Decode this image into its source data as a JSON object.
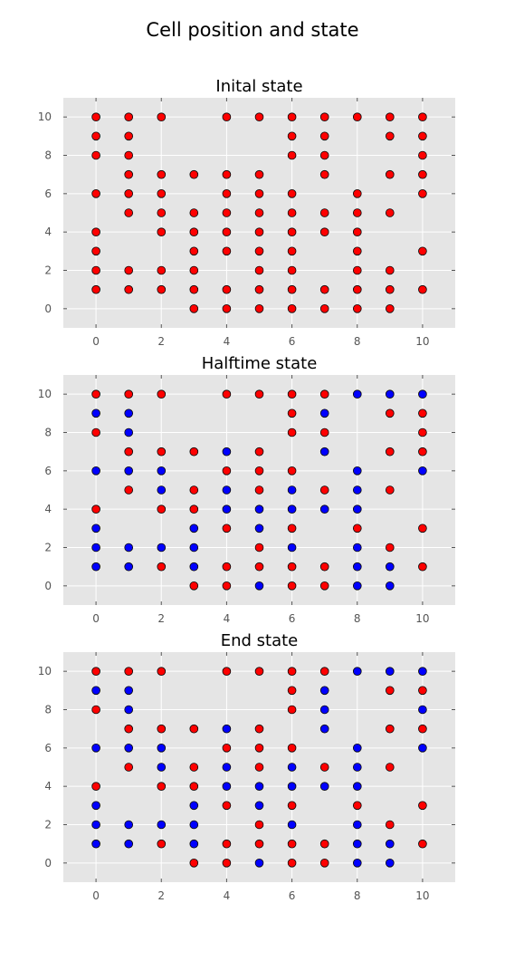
{
  "figure": {
    "title": "Cell position and state"
  },
  "colors": {
    "state_0": "#ff0000",
    "state_1": "#0000ff",
    "background": "#e5e5e5",
    "grid": "#ffffff"
  },
  "chart_data": [
    {
      "type": "scatter",
      "title": "Inital state",
      "xlim": [
        -1,
        11
      ],
      "ylim": [
        -1,
        11
      ],
      "xticks": [
        "0",
        "2",
        "4",
        "6",
        "8",
        "10"
      ],
      "yticks": [
        "0",
        "2",
        "4",
        "6",
        "8",
        "10"
      ],
      "grid": true,
      "points": [
        [
          0,
          10,
          0
        ],
        [
          1,
          10,
          0
        ],
        [
          2,
          10,
          0
        ],
        [
          4,
          10,
          0
        ],
        [
          5,
          10,
          0
        ],
        [
          6,
          10,
          0
        ],
        [
          7,
          10,
          0
        ],
        [
          8,
          10,
          0
        ],
        [
          9,
          10,
          0
        ],
        [
          10,
          10,
          0
        ],
        [
          0,
          9,
          0
        ],
        [
          1,
          9,
          0
        ],
        [
          6,
          9,
          0
        ],
        [
          7,
          9,
          0
        ],
        [
          9,
          9,
          0
        ],
        [
          10,
          9,
          0
        ],
        [
          0,
          8,
          0
        ],
        [
          1,
          8,
          0
        ],
        [
          6,
          8,
          0
        ],
        [
          7,
          8,
          0
        ],
        [
          10,
          8,
          0
        ],
        [
          1,
          7,
          0
        ],
        [
          2,
          7,
          0
        ],
        [
          3,
          7,
          0
        ],
        [
          4,
          7,
          0
        ],
        [
          5,
          7,
          0
        ],
        [
          7,
          7,
          0
        ],
        [
          9,
          7,
          0
        ],
        [
          10,
          7,
          0
        ],
        [
          0,
          6,
          0
        ],
        [
          1,
          6,
          0
        ],
        [
          2,
          6,
          0
        ],
        [
          4,
          6,
          0
        ],
        [
          5,
          6,
          0
        ],
        [
          6,
          6,
          0
        ],
        [
          8,
          6,
          0
        ],
        [
          10,
          6,
          0
        ],
        [
          1,
          5,
          0
        ],
        [
          2,
          5,
          0
        ],
        [
          3,
          5,
          0
        ],
        [
          4,
          5,
          0
        ],
        [
          5,
          5,
          0
        ],
        [
          6,
          5,
          0
        ],
        [
          7,
          5,
          0
        ],
        [
          8,
          5,
          0
        ],
        [
          9,
          5,
          0
        ],
        [
          0,
          4,
          0
        ],
        [
          2,
          4,
          0
        ],
        [
          3,
          4,
          0
        ],
        [
          4,
          4,
          0
        ],
        [
          5,
          4,
          0
        ],
        [
          6,
          4,
          0
        ],
        [
          7,
          4,
          0
        ],
        [
          8,
          4,
          0
        ],
        [
          0,
          3,
          0
        ],
        [
          3,
          3,
          0
        ],
        [
          4,
          3,
          0
        ],
        [
          5,
          3,
          0
        ],
        [
          6,
          3,
          0
        ],
        [
          8,
          3,
          0
        ],
        [
          10,
          3,
          0
        ],
        [
          0,
          2,
          0
        ],
        [
          1,
          2,
          0
        ],
        [
          2,
          2,
          0
        ],
        [
          3,
          2,
          0
        ],
        [
          5,
          2,
          0
        ],
        [
          6,
          2,
          0
        ],
        [
          8,
          2,
          0
        ],
        [
          9,
          2,
          0
        ],
        [
          0,
          1,
          0
        ],
        [
          1,
          1,
          0
        ],
        [
          2,
          1,
          0
        ],
        [
          3,
          1,
          0
        ],
        [
          4,
          1,
          0
        ],
        [
          5,
          1,
          0
        ],
        [
          6,
          1,
          0
        ],
        [
          7,
          1,
          0
        ],
        [
          8,
          1,
          0
        ],
        [
          9,
          1,
          0
        ],
        [
          10,
          1,
          0
        ],
        [
          3,
          0,
          0
        ],
        [
          4,
          0,
          0
        ],
        [
          5,
          0,
          0
        ],
        [
          6,
          0,
          0
        ],
        [
          7,
          0,
          0
        ],
        [
          8,
          0,
          0
        ],
        [
          9,
          0,
          0
        ]
      ]
    },
    {
      "type": "scatter",
      "title": "Halftime state",
      "xlim": [
        -1,
        11
      ],
      "ylim": [
        -1,
        11
      ],
      "xticks": [
        "0",
        "2",
        "4",
        "6",
        "8",
        "10"
      ],
      "yticks": [
        "0",
        "2",
        "4",
        "6",
        "8",
        "10"
      ],
      "grid": true,
      "points": [
        [
          0,
          10,
          0
        ],
        [
          1,
          10,
          0
        ],
        [
          2,
          10,
          0
        ],
        [
          4,
          10,
          0
        ],
        [
          5,
          10,
          0
        ],
        [
          6,
          10,
          0
        ],
        [
          7,
          10,
          0
        ],
        [
          8,
          10,
          1
        ],
        [
          9,
          10,
          1
        ],
        [
          10,
          10,
          1
        ],
        [
          0,
          9,
          1
        ],
        [
          1,
          9,
          1
        ],
        [
          6,
          9,
          0
        ],
        [
          7,
          9,
          1
        ],
        [
          9,
          9,
          0
        ],
        [
          10,
          9,
          0
        ],
        [
          0,
          8,
          0
        ],
        [
          1,
          8,
          1
        ],
        [
          6,
          8,
          0
        ],
        [
          7,
          8,
          0
        ],
        [
          10,
          8,
          0
        ],
        [
          1,
          7,
          0
        ],
        [
          2,
          7,
          0
        ],
        [
          3,
          7,
          0
        ],
        [
          4,
          7,
          1
        ],
        [
          5,
          7,
          0
        ],
        [
          7,
          7,
          1
        ],
        [
          9,
          7,
          0
        ],
        [
          10,
          7,
          0
        ],
        [
          0,
          6,
          1
        ],
        [
          1,
          6,
          1
        ],
        [
          2,
          6,
          1
        ],
        [
          4,
          6,
          0
        ],
        [
          5,
          6,
          0
        ],
        [
          6,
          6,
          0
        ],
        [
          8,
          6,
          1
        ],
        [
          10,
          6,
          1
        ],
        [
          1,
          5,
          0
        ],
        [
          2,
          5,
          1
        ],
        [
          3,
          5,
          0
        ],
        [
          4,
          5,
          1
        ],
        [
          5,
          5,
          0
        ],
        [
          6,
          5,
          1
        ],
        [
          7,
          5,
          0
        ],
        [
          8,
          5,
          1
        ],
        [
          9,
          5,
          0
        ],
        [
          0,
          4,
          0
        ],
        [
          2,
          4,
          0
        ],
        [
          3,
          4,
          0
        ],
        [
          4,
          4,
          1
        ],
        [
          5,
          4,
          1
        ],
        [
          6,
          4,
          1
        ],
        [
          7,
          4,
          1
        ],
        [
          8,
          4,
          1
        ],
        [
          0,
          3,
          1
        ],
        [
          3,
          3,
          1
        ],
        [
          4,
          3,
          0
        ],
        [
          5,
          3,
          1
        ],
        [
          6,
          3,
          0
        ],
        [
          8,
          3,
          0
        ],
        [
          10,
          3,
          0
        ],
        [
          0,
          2,
          1
        ],
        [
          1,
          2,
          1
        ],
        [
          2,
          2,
          1
        ],
        [
          3,
          2,
          1
        ],
        [
          5,
          2,
          0
        ],
        [
          6,
          2,
          1
        ],
        [
          8,
          2,
          1
        ],
        [
          9,
          2,
          0
        ],
        [
          0,
          1,
          1
        ],
        [
          1,
          1,
          1
        ],
        [
          2,
          1,
          0
        ],
        [
          3,
          1,
          1
        ],
        [
          4,
          1,
          0
        ],
        [
          5,
          1,
          0
        ],
        [
          6,
          1,
          0
        ],
        [
          7,
          1,
          0
        ],
        [
          8,
          1,
          1
        ],
        [
          9,
          1,
          1
        ],
        [
          10,
          1,
          0
        ],
        [
          3,
          0,
          0
        ],
        [
          4,
          0,
          0
        ],
        [
          5,
          0,
          1
        ],
        [
          6,
          0,
          0
        ],
        [
          7,
          0,
          0
        ],
        [
          8,
          0,
          1
        ],
        [
          9,
          0,
          1
        ]
      ]
    },
    {
      "type": "scatter",
      "title": "End state",
      "xlim": [
        -1,
        11
      ],
      "ylim": [
        -1,
        11
      ],
      "xticks": [
        "0",
        "2",
        "4",
        "6",
        "8",
        "10"
      ],
      "yticks": [
        "0",
        "2",
        "4",
        "6",
        "8",
        "10"
      ],
      "grid": true,
      "points": [
        [
          0,
          10,
          0
        ],
        [
          1,
          10,
          0
        ],
        [
          2,
          10,
          0
        ],
        [
          4,
          10,
          0
        ],
        [
          5,
          10,
          0
        ],
        [
          6,
          10,
          0
        ],
        [
          7,
          10,
          0
        ],
        [
          8,
          10,
          1
        ],
        [
          9,
          10,
          1
        ],
        [
          10,
          10,
          1
        ],
        [
          0,
          9,
          1
        ],
        [
          1,
          9,
          1
        ],
        [
          6,
          9,
          0
        ],
        [
          7,
          9,
          1
        ],
        [
          9,
          9,
          0
        ],
        [
          10,
          9,
          0
        ],
        [
          0,
          8,
          0
        ],
        [
          1,
          8,
          1
        ],
        [
          6,
          8,
          0
        ],
        [
          7,
          8,
          1
        ],
        [
          10,
          8,
          1
        ],
        [
          1,
          7,
          0
        ],
        [
          2,
          7,
          0
        ],
        [
          3,
          7,
          0
        ],
        [
          4,
          7,
          1
        ],
        [
          5,
          7,
          0
        ],
        [
          7,
          7,
          1
        ],
        [
          9,
          7,
          0
        ],
        [
          10,
          7,
          0
        ],
        [
          0,
          6,
          1
        ],
        [
          1,
          6,
          1
        ],
        [
          2,
          6,
          1
        ],
        [
          4,
          6,
          0
        ],
        [
          5,
          6,
          0
        ],
        [
          6,
          6,
          0
        ],
        [
          8,
          6,
          1
        ],
        [
          10,
          6,
          1
        ],
        [
          1,
          5,
          0
        ],
        [
          2,
          5,
          1
        ],
        [
          3,
          5,
          0
        ],
        [
          4,
          5,
          1
        ],
        [
          5,
          5,
          0
        ],
        [
          6,
          5,
          1
        ],
        [
          7,
          5,
          0
        ],
        [
          8,
          5,
          1
        ],
        [
          9,
          5,
          0
        ],
        [
          0,
          4,
          0
        ],
        [
          2,
          4,
          0
        ],
        [
          3,
          4,
          0
        ],
        [
          4,
          4,
          1
        ],
        [
          5,
          4,
          1
        ],
        [
          6,
          4,
          1
        ],
        [
          7,
          4,
          1
        ],
        [
          8,
          4,
          1
        ],
        [
          0,
          3,
          1
        ],
        [
          3,
          3,
          1
        ],
        [
          4,
          3,
          0
        ],
        [
          5,
          3,
          1
        ],
        [
          6,
          3,
          0
        ],
        [
          8,
          3,
          0
        ],
        [
          10,
          3,
          0
        ],
        [
          0,
          2,
          1
        ],
        [
          1,
          2,
          1
        ],
        [
          2,
          2,
          1
        ],
        [
          3,
          2,
          1
        ],
        [
          5,
          2,
          0
        ],
        [
          6,
          2,
          1
        ],
        [
          8,
          2,
          1
        ],
        [
          9,
          2,
          0
        ],
        [
          0,
          1,
          1
        ],
        [
          1,
          1,
          1
        ],
        [
          2,
          1,
          0
        ],
        [
          3,
          1,
          1
        ],
        [
          4,
          1,
          0
        ],
        [
          5,
          1,
          0
        ],
        [
          6,
          1,
          0
        ],
        [
          7,
          1,
          0
        ],
        [
          8,
          1,
          1
        ],
        [
          9,
          1,
          1
        ],
        [
          10,
          1,
          0
        ],
        [
          3,
          0,
          0
        ],
        [
          4,
          0,
          0
        ],
        [
          5,
          0,
          1
        ],
        [
          6,
          0,
          0
        ],
        [
          7,
          0,
          0
        ],
        [
          8,
          0,
          1
        ],
        [
          9,
          0,
          1
        ]
      ]
    }
  ]
}
